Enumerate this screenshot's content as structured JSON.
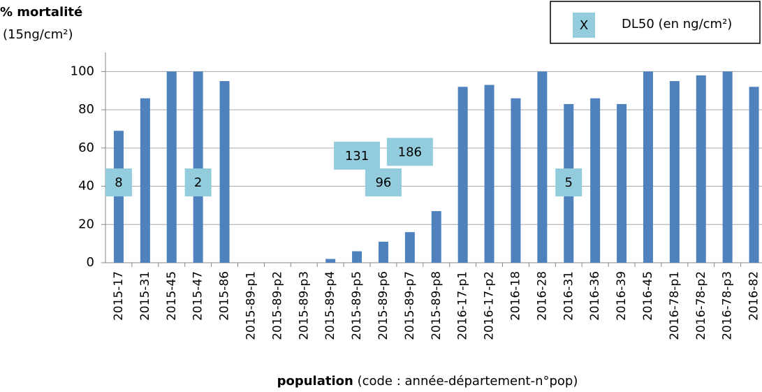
{
  "chart_data": {
    "type": "bar",
    "title": "% mortalité",
    "subtitle": "(15ng/cm²)",
    "xlabel": {
      "bold": "population",
      "rest": "(code : année-département-n°pop)"
    },
    "categories": [
      "2015-17",
      "2015-31",
      "2015-45",
      "2015-47",
      "2015-86",
      "2015-89-p1",
      "2015-89-p2",
      "2015-89-p3",
      "2015-89-p4",
      "2015-89-p5",
      "2015-89-p6",
      "2015-89-p7",
      "2015-89-p8",
      "2016-17-p1",
      "2016-17-p2",
      "2016-18",
      "2016-28",
      "2016-31",
      "2016-36",
      "2016-39",
      "2016-45",
      "2016-78-p1",
      "2016-78-p2",
      "2016-78-p3",
      "2016-82"
    ],
    "values": [
      69,
      86,
      100,
      100,
      95,
      0,
      0,
      0,
      2,
      6,
      11,
      16,
      27,
      92,
      93,
      86,
      100,
      83,
      86,
      83,
      100,
      95,
      98,
      100,
      92
    ],
    "color": "#4f81bd",
    "ylim": [
      0,
      110
    ],
    "yticks": [
      0,
      20,
      40,
      60,
      80,
      100
    ],
    "grid": true,
    "dl50": {
      "marker": "X",
      "name": "DL50 (en ng/cm²)",
      "color": "#93cddd",
      "points": [
        {
          "category": "2015-17",
          "value": 8,
          "y": 42
        },
        {
          "category": "2015-47",
          "value": 2,
          "y": 42
        },
        {
          "category": "2015-89-p5",
          "value": 131,
          "y": 56
        },
        {
          "category": "2015-89-p7",
          "value": 186,
          "y": 58
        },
        {
          "category": "2015-89-p6",
          "value": 96,
          "y": 42
        },
        {
          "category": "2016-31",
          "value": 5,
          "y": 42
        }
      ]
    },
    "legend": "top-right"
  }
}
